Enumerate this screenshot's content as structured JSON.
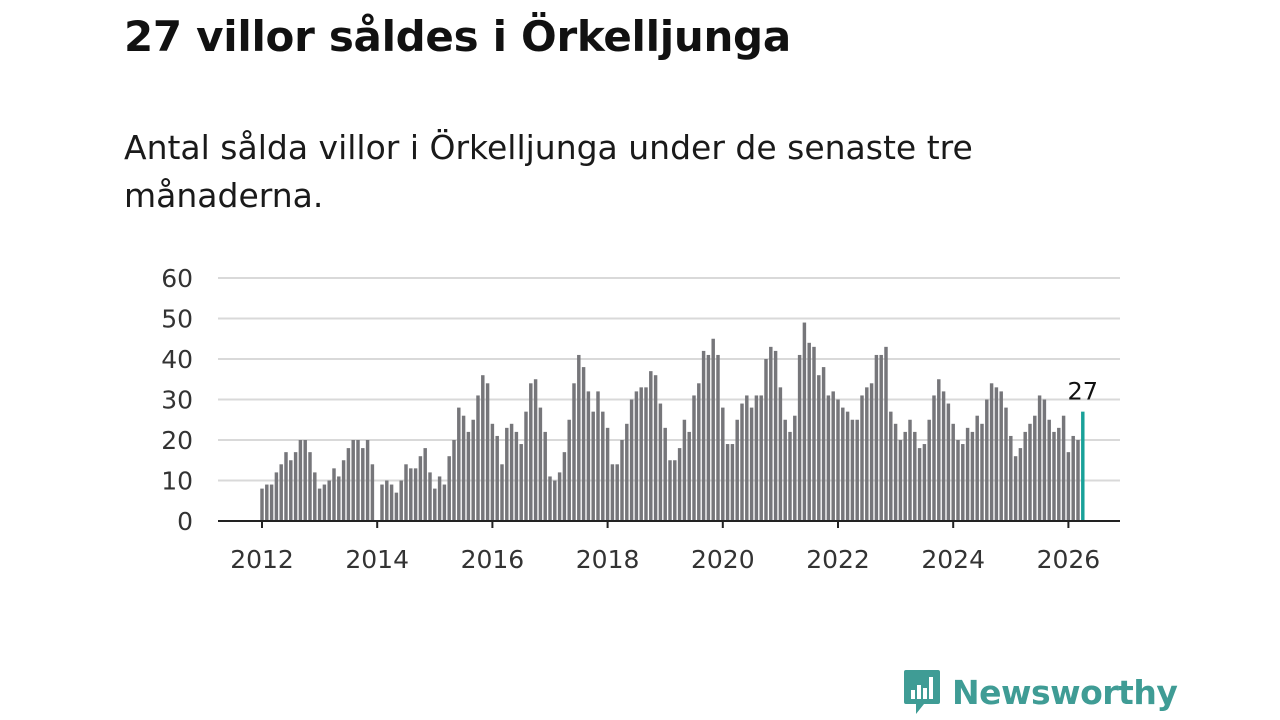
{
  "title": "27 villor såldes i Örkelljunga",
  "subtitle": "Antal sålda villor i Örkelljunga under de senaste tre månaderna.",
  "brand": {
    "name": "Newsworthy",
    "color": "#3f9c95",
    "icon": "bar-chart-speech-bubble-icon"
  },
  "colors": {
    "bar": "#76767a",
    "highlight": "#19a199",
    "grid": "#d9d9d9",
    "axis": "#222222"
  },
  "chart_data": {
    "type": "bar",
    "title": "Antal sålda villor i Örkelljunga",
    "xlabel": "",
    "ylabel": "",
    "ylim": [
      0,
      60
    ],
    "yticks": [
      0,
      10,
      20,
      30,
      40,
      50,
      60
    ],
    "xtick_labels": [
      "2012",
      "2014",
      "2016",
      "2018",
      "2020",
      "2022",
      "2024",
      "2026"
    ],
    "start": "2012-01",
    "frequency": "monthly",
    "highlight_label": "27",
    "values": [
      8,
      9,
      9,
      12,
      14,
      17,
      15,
      17,
      20,
      20,
      17,
      12,
      8,
      9,
      10,
      13,
      11,
      15,
      18,
      20,
      20,
      18,
      20,
      14,
      0,
      9,
      10,
      9,
      7,
      10,
      14,
      13,
      13,
      16,
      18,
      12,
      8,
      11,
      9,
      16,
      20,
      28,
      26,
      22,
      25,
      31,
      36,
      34,
      24,
      21,
      14,
      23,
      24,
      22,
      19,
      27,
      34,
      35,
      28,
      22,
      11,
      10,
      12,
      17,
      25,
      34,
      41,
      38,
      32,
      27,
      32,
      27,
      23,
      14,
      14,
      20,
      24,
      30,
      32,
      33,
      33,
      37,
      36,
      29,
      23,
      15,
      15,
      18,
      25,
      22,
      31,
      34,
      42,
      41,
      45,
      41,
      28,
      19,
      19,
      25,
      29,
      31,
      28,
      31,
      31,
      40,
      43,
      42,
      33,
      25,
      22,
      26,
      41,
      49,
      44,
      43,
      36,
      38,
      31,
      32,
      30,
      28,
      27,
      25,
      25,
      31,
      33,
      34,
      41,
      41,
      43,
      27,
      24,
      20,
      22,
      25,
      22,
      18,
      19,
      25,
      31,
      35,
      32,
      29,
      24,
      20,
      19,
      23,
      22,
      26,
      24,
      30,
      34,
      33,
      32,
      28,
      21,
      16,
      18,
      22,
      24,
      26,
      31,
      30,
      25,
      22,
      23,
      26,
      17,
      21,
      20,
      27
    ]
  }
}
